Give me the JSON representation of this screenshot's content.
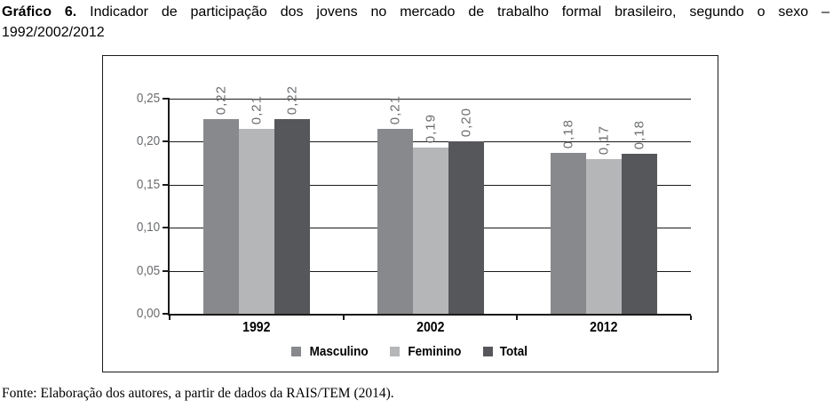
{
  "page": {
    "title": {
      "label_bold": "Gráfico 6.",
      "line1_rest": "Indicador de participação dos jovens no mercado de trabalho formal brasileiro, segundo o sexo –",
      "line2": "1992/2002/2012"
    },
    "footer": {
      "label": "Fonte:",
      "text": "Elaboração dos autores, a partir de dados da RAIS/TEM (2014)."
    }
  },
  "chart_data": {
    "type": "bar",
    "title": "",
    "xlabel": "",
    "ylabel": "",
    "categories": [
      "1992",
      "2002",
      "2012"
    ],
    "series": [
      {
        "name": "Masculino",
        "color": "#88898c",
        "values": [
          0.22,
          0.21,
          0.18
        ],
        "data_labels": [
          "0,22",
          "0,21",
          "0,18"
        ],
        "bar_heights": [
          0.226,
          0.215,
          0.187
        ]
      },
      {
        "name": "Feminino",
        "color": "#b4b6b8",
        "values": [
          0.21,
          0.19,
          0.17
        ],
        "data_labels": [
          "0,21",
          "0,19",
          "0,17"
        ],
        "bar_heights": [
          0.215,
          0.193,
          0.18
        ]
      },
      {
        "name": "Total",
        "color": "#56575a",
        "values": [
          0.22,
          0.2,
          0.18
        ],
        "data_labels": [
          "0,22",
          "0,20",
          "0,18"
        ],
        "bar_heights": [
          0.226,
          0.2,
          0.186
        ]
      }
    ],
    "y_axis": {
      "ticks": [
        "0,25",
        "0,20",
        "0,15",
        "0,10",
        "0,05",
        "0,00"
      ],
      "min": 0,
      "max": 0.25,
      "step": 0.05
    },
    "grid": true,
    "legend_position": "bottom",
    "data_label_rotation_deg": 90,
    "colors": {
      "grid": "#1a1a1a",
      "axis_label_text": "#6b6d70",
      "frame_border": "#1a1a1a"
    }
  }
}
